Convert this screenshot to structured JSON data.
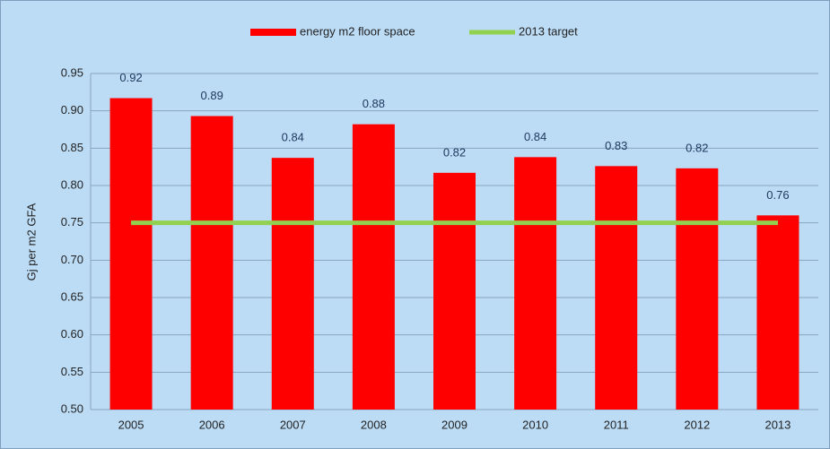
{
  "chart_data": {
    "type": "bar",
    "y_label": "Gj per m2 GFA",
    "categories": [
      "2005",
      "2006",
      "2007",
      "2008",
      "2009",
      "2010",
      "2011",
      "2012",
      "2013"
    ],
    "series": [
      {
        "name": "energy m2 floor space",
        "type": "bar",
        "color": "#ff0000",
        "values": [
          0.917,
          0.893,
          0.837,
          0.882,
          0.817,
          0.838,
          0.826,
          0.823,
          0.76
        ],
        "value_labels": [
          "0.92",
          "0.89",
          "0.84",
          "0.88",
          "0.82",
          "0.84",
          "0.83",
          "0.82",
          "0.76"
        ]
      },
      {
        "name": "2013 target",
        "type": "line",
        "color": "#92d050",
        "values": [
          0.75,
          0.75,
          0.75,
          0.75,
          0.75,
          0.75,
          0.75,
          0.75,
          0.75
        ]
      }
    ],
    "ylim": [
      0.5,
      0.95
    ],
    "yticks": [
      {
        "value": 0.5,
        "label": "0.50"
      },
      0.55,
      {
        "value": 0.6,
        "label": "0.60"
      },
      0.65,
      {
        "value": 0.7,
        "label": "0.70"
      },
      0.75,
      {
        "value": 0.8,
        "label": "0.80"
      },
      0.85,
      {
        "value": 0.9,
        "label": "0.90"
      },
      0.95
    ],
    "grid": true,
    "legend": "top"
  }
}
